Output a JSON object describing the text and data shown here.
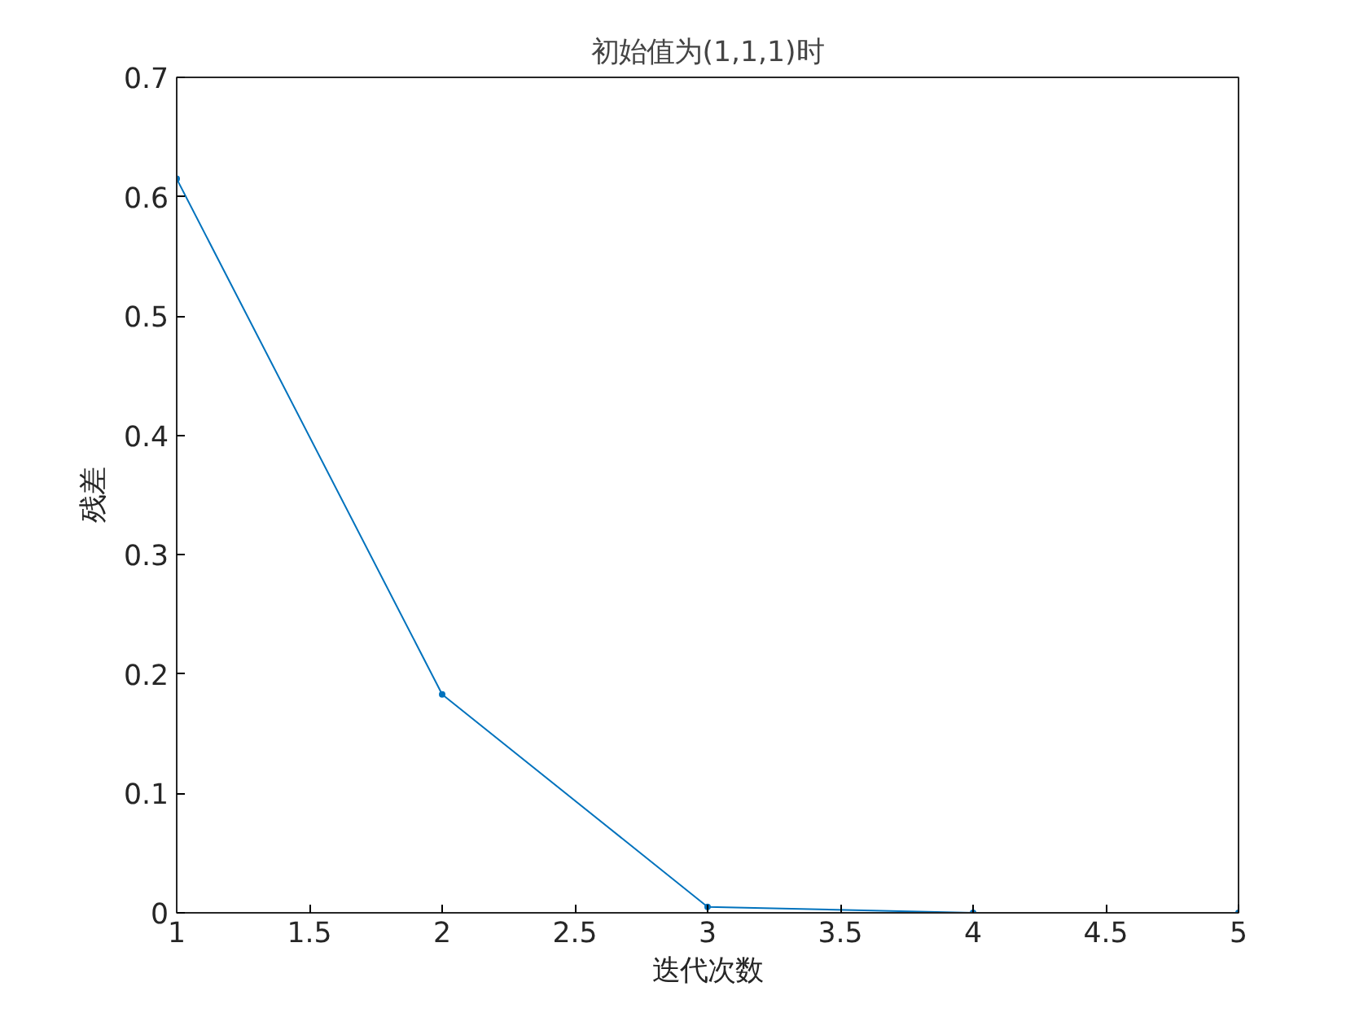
{
  "chart_data": {
    "type": "line",
    "title": "初始值为(1,1,1)时",
    "xlabel": "迭代次数",
    "ylabel": "残差",
    "x": [
      1,
      2,
      3,
      4,
      5
    ],
    "series": [
      {
        "color": "#0072bd",
        "values": [
          0.615,
          0.183,
          0.005,
          0.0,
          0.0
        ]
      }
    ],
    "xlim": [
      1,
      5
    ],
    "xticks": [
      1,
      1.5,
      2,
      2.5,
      3,
      3.5,
      4,
      4.5,
      5
    ],
    "ylim": [
      0,
      0.7
    ],
    "yticks": [
      0,
      0.1,
      0.2,
      0.3,
      0.4,
      0.5,
      0.6,
      0.7
    ],
    "grid": false,
    "marker": "circle",
    "line_style": "solid"
  }
}
